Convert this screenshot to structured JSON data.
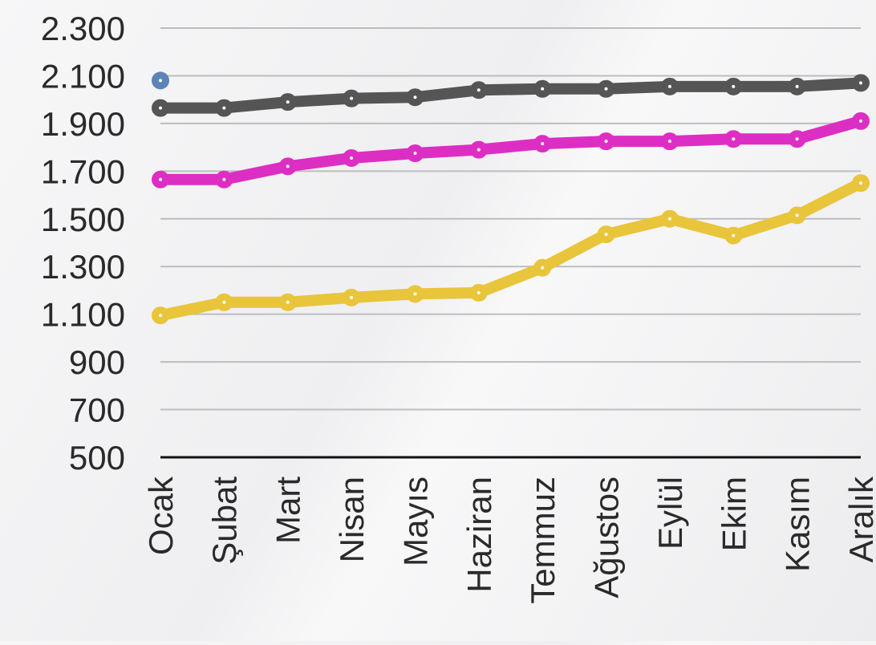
{
  "chart_data": {
    "type": "line",
    "categories": [
      "Ocak",
      "Şubat",
      "Mart",
      "Nisan",
      "Mayıs",
      "Haziran",
      "Temmuz",
      "Ağustos",
      "Eylül",
      "Ekim",
      "Kasım",
      "Aralık"
    ],
    "y_tick_labels": [
      "2.300",
      "2.100",
      "1.900",
      "1.700",
      "1.500",
      "1.300",
      "1.100",
      "900",
      "700",
      "500"
    ],
    "y_ticks": [
      2300,
      2100,
      1900,
      1700,
      1500,
      1300,
      1100,
      900,
      700,
      500
    ],
    "ylim": [
      500,
      2300
    ],
    "grid": true,
    "legend": "none",
    "series": [
      {
        "color": "#555555",
        "values": [
          1965,
          1965,
          1990,
          2005,
          2010,
          2040,
          2045,
          2045,
          2055,
          2055,
          2055,
          2070
        ]
      },
      {
        "color": "#dd2ec3",
        "values": [
          1665,
          1665,
          1720,
          1755,
          1775,
          1790,
          1815,
          1825,
          1825,
          1835,
          1835,
          1910
        ]
      },
      {
        "color": "#e8c53a",
        "values": [
          1095,
          1150,
          1150,
          1170,
          1185,
          1190,
          1295,
          1435,
          1500,
          1430,
          1515,
          1650
        ]
      }
    ],
    "extra_points": [
      {
        "category": "Ocak",
        "value": 2080,
        "color": "#5b84b8"
      }
    ]
  }
}
